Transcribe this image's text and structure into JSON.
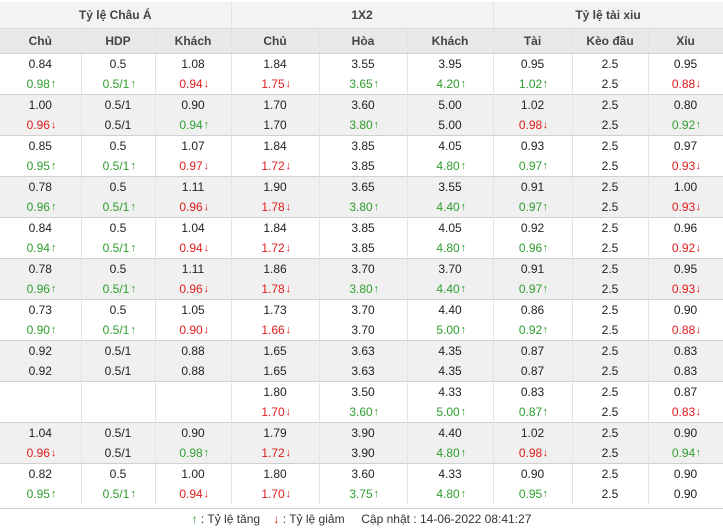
{
  "groups": [
    "Tỷ lệ Châu Á",
    "1X2",
    "Tỷ lệ tài xiu"
  ],
  "columns": [
    "Chủ",
    "HDP",
    "Khách",
    "Chủ",
    "Hòa",
    "Khách",
    "Tài",
    "Kèo đầu",
    "Xỉu"
  ],
  "arrow_up": "↑",
  "arrow_down": "↓",
  "rows": [
    [
      [
        "0.84",
        "n"
      ],
      [
        "0.5",
        "n"
      ],
      [
        "1.08",
        "n"
      ],
      [
        "1.84",
        "n"
      ],
      [
        "3.55",
        "n"
      ],
      [
        "3.95",
        "n"
      ],
      [
        "0.95",
        "n"
      ],
      [
        "2.5",
        "n"
      ],
      [
        "0.95",
        "n"
      ]
    ],
    [
      [
        "0.98",
        "u"
      ],
      [
        "0.5/1",
        "u"
      ],
      [
        "0.94",
        "d"
      ],
      [
        "1.75",
        "d"
      ],
      [
        "3.65",
        "u"
      ],
      [
        "4.20",
        "u"
      ],
      [
        "1.02",
        "u"
      ],
      [
        "2.5",
        "n"
      ],
      [
        "0.88",
        "d"
      ]
    ],
    [
      [
        "1.00",
        "n"
      ],
      [
        "0.5/1",
        "n"
      ],
      [
        "0.90",
        "n"
      ],
      [
        "1.70",
        "n"
      ],
      [
        "3.60",
        "n"
      ],
      [
        "5.00",
        "n"
      ],
      [
        "1.02",
        "n"
      ],
      [
        "2.5",
        "n"
      ],
      [
        "0.80",
        "n"
      ]
    ],
    [
      [
        "0.96",
        "d"
      ],
      [
        "0.5/1",
        "n"
      ],
      [
        "0.94",
        "u"
      ],
      [
        "1.70",
        "n"
      ],
      [
        "3.80",
        "u"
      ],
      [
        "5.00",
        "n"
      ],
      [
        "0.98",
        "d"
      ],
      [
        "2.5",
        "n"
      ],
      [
        "0.92",
        "u"
      ]
    ],
    [
      [
        "0.85",
        "n"
      ],
      [
        "0.5",
        "n"
      ],
      [
        "1.07",
        "n"
      ],
      [
        "1.84",
        "n"
      ],
      [
        "3.85",
        "n"
      ],
      [
        "4.05",
        "n"
      ],
      [
        "0.93",
        "n"
      ],
      [
        "2.5",
        "n"
      ],
      [
        "0.97",
        "n"
      ]
    ],
    [
      [
        "0.95",
        "u"
      ],
      [
        "0.5/1",
        "u"
      ],
      [
        "0.97",
        "d"
      ],
      [
        "1.72",
        "d"
      ],
      [
        "3.85",
        "n"
      ],
      [
        "4.80",
        "u"
      ],
      [
        "0.97",
        "u"
      ],
      [
        "2.5",
        "n"
      ],
      [
        "0.93",
        "d"
      ]
    ],
    [
      [
        "0.78",
        "n"
      ],
      [
        "0.5",
        "n"
      ],
      [
        "1.11",
        "n"
      ],
      [
        "1.90",
        "n"
      ],
      [
        "3.65",
        "n"
      ],
      [
        "3.55",
        "n"
      ],
      [
        "0.91",
        "n"
      ],
      [
        "2.5",
        "n"
      ],
      [
        "1.00",
        "n"
      ]
    ],
    [
      [
        "0.96",
        "u"
      ],
      [
        "0.5/1",
        "u"
      ],
      [
        "0.96",
        "d"
      ],
      [
        "1.78",
        "d"
      ],
      [
        "3.80",
        "u"
      ],
      [
        "4.40",
        "u"
      ],
      [
        "0.97",
        "u"
      ],
      [
        "2.5",
        "n"
      ],
      [
        "0.93",
        "d"
      ]
    ],
    [
      [
        "0.84",
        "n"
      ],
      [
        "0.5",
        "n"
      ],
      [
        "1.04",
        "n"
      ],
      [
        "1.84",
        "n"
      ],
      [
        "3.85",
        "n"
      ],
      [
        "4.05",
        "n"
      ],
      [
        "0.92",
        "n"
      ],
      [
        "2.5",
        "n"
      ],
      [
        "0.96",
        "n"
      ]
    ],
    [
      [
        "0.94",
        "u"
      ],
      [
        "0.5/1",
        "u"
      ],
      [
        "0.94",
        "d"
      ],
      [
        "1.72",
        "d"
      ],
      [
        "3.85",
        "n"
      ],
      [
        "4.80",
        "u"
      ],
      [
        "0.96",
        "u"
      ],
      [
        "2.5",
        "n"
      ],
      [
        "0.92",
        "d"
      ]
    ],
    [
      [
        "0.78",
        "n"
      ],
      [
        "0.5",
        "n"
      ],
      [
        "1.11",
        "n"
      ],
      [
        "1.86",
        "n"
      ],
      [
        "3.70",
        "n"
      ],
      [
        "3.70",
        "n"
      ],
      [
        "0.91",
        "n"
      ],
      [
        "2.5",
        "n"
      ],
      [
        "0.95",
        "n"
      ]
    ],
    [
      [
        "0.96",
        "u"
      ],
      [
        "0.5/1",
        "u"
      ],
      [
        "0.96",
        "d"
      ],
      [
        "1.78",
        "d"
      ],
      [
        "3.80",
        "u"
      ],
      [
        "4.40",
        "u"
      ],
      [
        "0.97",
        "u"
      ],
      [
        "2.5",
        "n"
      ],
      [
        "0.93",
        "d"
      ]
    ],
    [
      [
        "0.73",
        "n"
      ],
      [
        "0.5",
        "n"
      ],
      [
        "1.05",
        "n"
      ],
      [
        "1.73",
        "n"
      ],
      [
        "3.70",
        "n"
      ],
      [
        "4.40",
        "n"
      ],
      [
        "0.86",
        "n"
      ],
      [
        "2.5",
        "n"
      ],
      [
        "0.90",
        "n"
      ]
    ],
    [
      [
        "0.90",
        "u"
      ],
      [
        "0.5/1",
        "u"
      ],
      [
        "0.90",
        "d"
      ],
      [
        "1.66",
        "d"
      ],
      [
        "3.70",
        "n"
      ],
      [
        "5.00",
        "u"
      ],
      [
        "0.92",
        "u"
      ],
      [
        "2.5",
        "n"
      ],
      [
        "0.88",
        "d"
      ]
    ],
    [
      [
        "0.92",
        "n"
      ],
      [
        "0.5/1",
        "n"
      ],
      [
        "0.88",
        "n"
      ],
      [
        "1.65",
        "n"
      ],
      [
        "3.63",
        "n"
      ],
      [
        "4.35",
        "n"
      ],
      [
        "0.87",
        "n"
      ],
      [
        "2.5",
        "n"
      ],
      [
        "0.83",
        "n"
      ]
    ],
    [
      [
        "0.92",
        "n"
      ],
      [
        "0.5/1",
        "n"
      ],
      [
        "0.88",
        "n"
      ],
      [
        "1.65",
        "n"
      ],
      [
        "3.63",
        "n"
      ],
      [
        "4.35",
        "n"
      ],
      [
        "0.87",
        "n"
      ],
      [
        "2.5",
        "n"
      ],
      [
        "0.83",
        "n"
      ]
    ],
    [
      [
        "",
        "n"
      ],
      [
        "",
        "n"
      ],
      [
        "",
        "n"
      ],
      [
        "1.80",
        "n"
      ],
      [
        "3.50",
        "n"
      ],
      [
        "4.33",
        "n"
      ],
      [
        "0.83",
        "n"
      ],
      [
        "2.5",
        "n"
      ],
      [
        "0.87",
        "n"
      ]
    ],
    [
      [
        "",
        "n"
      ],
      [
        "",
        "n"
      ],
      [
        "",
        "n"
      ],
      [
        "1.70",
        "d"
      ],
      [
        "3.60",
        "u"
      ],
      [
        "5.00",
        "u"
      ],
      [
        "0.87",
        "u"
      ],
      [
        "2.5",
        "n"
      ],
      [
        "0.83",
        "d"
      ]
    ],
    [
      [
        "1.04",
        "n"
      ],
      [
        "0.5/1",
        "n"
      ],
      [
        "0.90",
        "n"
      ],
      [
        "1.79",
        "n"
      ],
      [
        "3.90",
        "n"
      ],
      [
        "4.40",
        "n"
      ],
      [
        "1.02",
        "n"
      ],
      [
        "2.5",
        "n"
      ],
      [
        "0.90",
        "n"
      ]
    ],
    [
      [
        "0.96",
        "d"
      ],
      [
        "0.5/1",
        "n"
      ],
      [
        "0.98",
        "u"
      ],
      [
        "1.72",
        "d"
      ],
      [
        "3.90",
        "n"
      ],
      [
        "4.80",
        "u"
      ],
      [
        "0.98",
        "d"
      ],
      [
        "2.5",
        "n"
      ],
      [
        "0.94",
        "u"
      ]
    ],
    [
      [
        "0.82",
        "n"
      ],
      [
        "0.5",
        "n"
      ],
      [
        "1.00",
        "n"
      ],
      [
        "1.80",
        "n"
      ],
      [
        "3.60",
        "n"
      ],
      [
        "4.33",
        "n"
      ],
      [
        "0.90",
        "n"
      ],
      [
        "2.5",
        "n"
      ],
      [
        "0.90",
        "n"
      ]
    ],
    [
      [
        "0.95",
        "u"
      ],
      [
        "0.5/1",
        "u"
      ],
      [
        "0.94",
        "d"
      ],
      [
        "1.70",
        "d"
      ],
      [
        "3.75",
        "u"
      ],
      [
        "4.80",
        "u"
      ],
      [
        "0.95",
        "u"
      ],
      [
        "2.5",
        "n"
      ],
      [
        "0.90",
        "n"
      ]
    ]
  ],
  "legend": {
    "up_label": ": Tỷ lệ tăng",
    "down_label": ": Tỷ lệ giảm",
    "update_label": "Cập nhật :",
    "update_time": "14-06-2022 08:41:27"
  }
}
